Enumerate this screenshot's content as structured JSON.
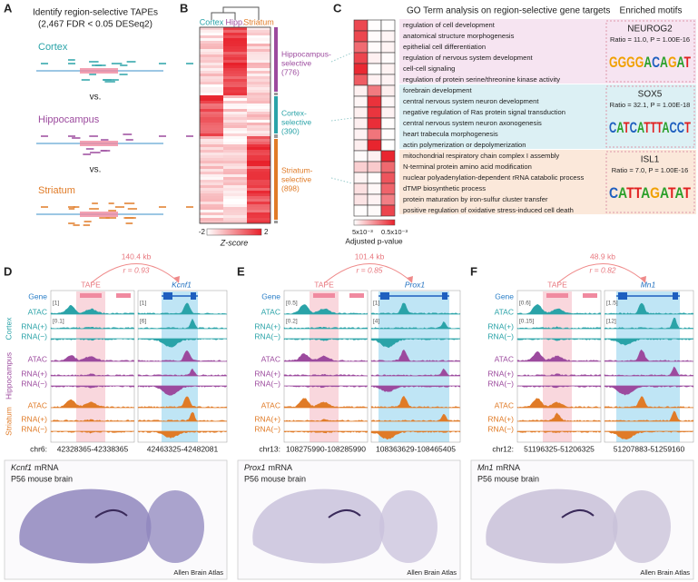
{
  "panel_a": {
    "label": "A",
    "title": "Identify region-selective TAPEs",
    "subtitle": "(2,467 FDR < 0.05 DESeq2)",
    "regions": [
      "Cortex",
      "Hippocampus",
      "Striatum"
    ],
    "vs": "vs."
  },
  "panel_b": {
    "label": "B",
    "columns": [
      "Cortex",
      "Hipp.",
      "Striatum"
    ],
    "groups": [
      {
        "lines": [
          "Hippocampus-",
          "selective",
          "(776)"
        ]
      },
      {
        "lines": [
          "Cortex-",
          "selective",
          "(390)"
        ]
      },
      {
        "lines": [
          "Striatum-",
          "selective",
          "(898)"
        ]
      }
    ],
    "scale_min": "-2",
    "scale_max": "2",
    "scale_title": "Z-score"
  },
  "panel_c": {
    "label": "C",
    "header": "GO Term analysis on region-selective gene targets",
    "motif_header": "Enriched motifs",
    "groups": [
      {
        "terms": [
          "regulation of cell development",
          "anatomical structure morphogenesis",
          "epithelial cell differentiation",
          "regulation of nervous system development",
          "cell-cell signaling",
          "regulation of protein serine/threonine kinase activity"
        ],
        "motif": "NEUROG2",
        "stats": "Ratio = 11.0, P = 1.00E-16",
        "logo": [
          "G",
          "G",
          "G",
          "G",
          "A",
          "C",
          "A",
          "G",
          "A",
          "T"
        ]
      },
      {
        "terms": [
          "forebrain development",
          "central nervous system neuron development",
          "negative regulation of Ras protein signal transduction",
          "central nervous system neuron axonogenesis",
          "heart trabecula morphogenesis",
          "actin polymerization or depolymerization"
        ],
        "motif": "SOX5",
        "stats": "Ratio = 32.1, P = 1.00E-18",
        "logo": [
          "C",
          "A",
          "T",
          "C",
          "A",
          "T",
          "T",
          "T",
          "A",
          "C",
          "C",
          "T"
        ]
      },
      {
        "terms": [
          "mitochondrial respiratory chain complex I assembly",
          "N-terminal protein amino acid modification",
          "nuclear polyadenylation-dependent rRNA catabolic process",
          "dTMP biosynthetic process",
          "protein maturation by iron-sulfur cluster transfer",
          "positive regulation of oxidative stress-induced cell death"
        ],
        "motif": "ISL1",
        "stats": "Ratio = 7.0, P = 1.00E-16",
        "logo": [
          "C",
          "A",
          "T",
          "T",
          "A",
          "G",
          "A",
          "T",
          "A",
          "T"
        ]
      }
    ],
    "scale_left": "5x10⁻³",
    "scale_right": "0.5x10⁻³",
    "scale_title": "Adjusted p-value"
  },
  "tracks": {
    "labels": [
      "Gene",
      "ATAC",
      "RNA(+)",
      "RNA(−)"
    ],
    "regions": [
      "Cortex",
      "Hippocampus",
      "Striatum"
    ]
  },
  "loci": [
    {
      "label": "D",
      "distance": "140.4 kb",
      "r": "r = 0.93",
      "tape": "TAPE",
      "gene": "Kcnf1",
      "scales_left": [
        "[1]",
        "[0.1]"
      ],
      "scales_right": [
        "[1]",
        "[6]"
      ],
      "chrom": "chr6:",
      "coords": [
        "42328365-42338365",
        "42463325-42482081"
      ],
      "image": {
        "gene": "Kcnf1",
        "mrna": "mRNA",
        "age": "P56 mouse brain",
        "credit": "Allen Brain Atlas"
      }
    },
    {
      "label": "E",
      "distance": "101.4 kb",
      "r": "r = 0.85",
      "tape": "TAPE",
      "gene": "Prox1",
      "scales_left": [
        "[0.5]",
        "[0.2]"
      ],
      "scales_right": [
        "[1]",
        "[4]"
      ],
      "chrom": "chr13:",
      "coords": [
        "108275990-108285990",
        "108363629-108465405"
      ],
      "image": {
        "gene": "Prox1",
        "mrna": "mRNA",
        "age": "P56 mouse brain",
        "credit": "Allen Brain Atlas"
      }
    },
    {
      "label": "F",
      "distance": "48.9 kb",
      "r": "r = 0.82",
      "tape": "TAPE",
      "gene": "Mn1",
      "scales_left": [
        "[0.6]",
        "[0.15]"
      ],
      "scales_right": [
        "[1.5]",
        "[12]"
      ],
      "chrom": "chr12:",
      "coords": [
        "51196325-51206325",
        "51207883-51259160"
      ],
      "image": {
        "gene": "Mn1",
        "mrna": "mRNA",
        "age": "P56 mouse brain",
        "credit": "Allen Brain Atlas"
      }
    }
  ]
}
